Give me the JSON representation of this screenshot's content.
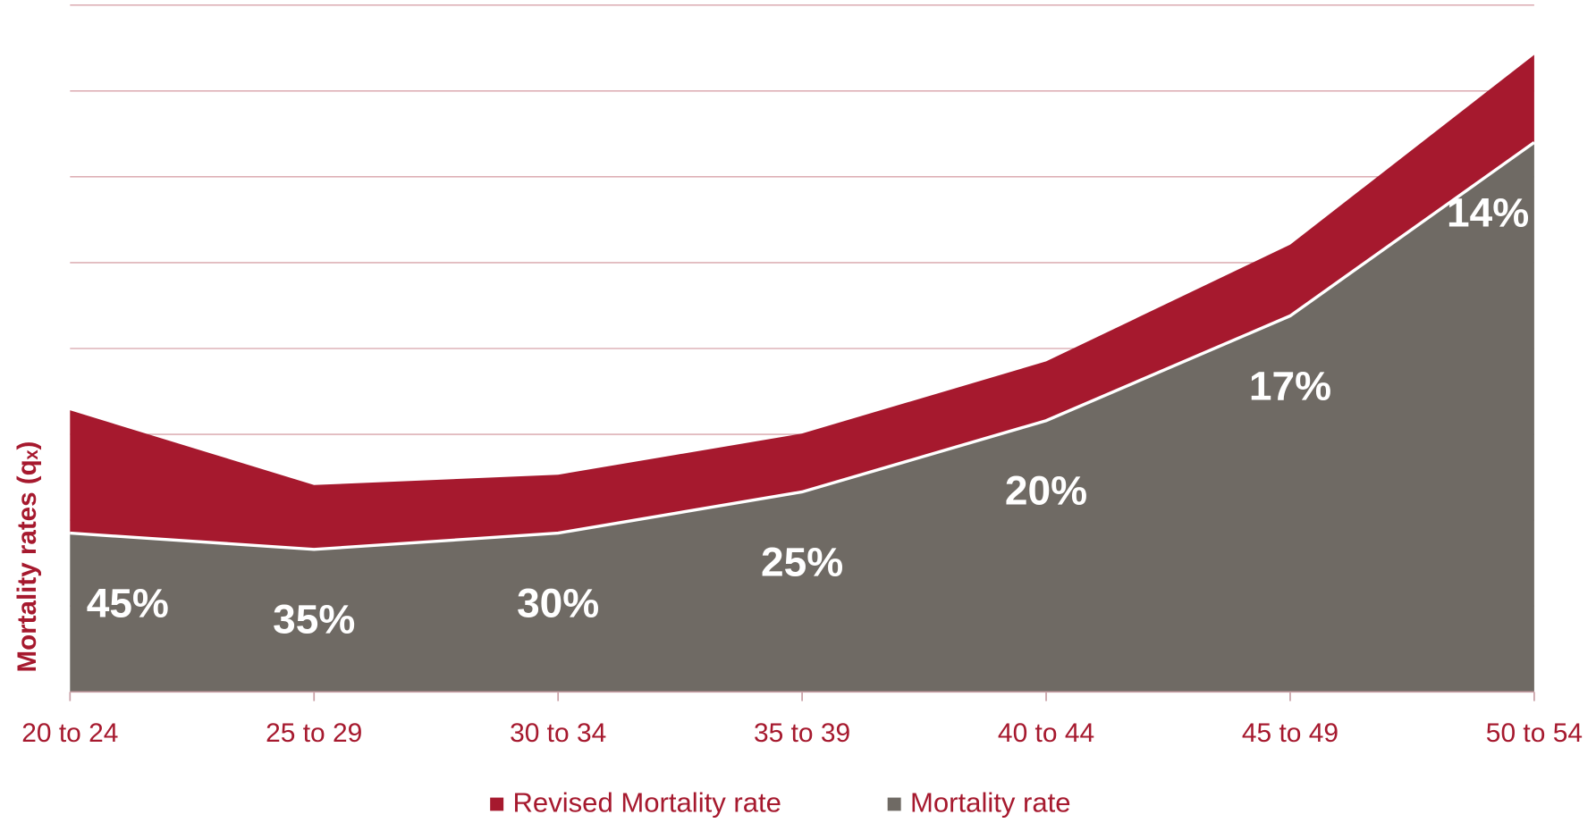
{
  "chart_data": {
    "type": "stacked_area",
    "y_label": "Mortality rates (qₓ)",
    "categories": [
      "20 to 24",
      "25 to 29",
      "30 to 34",
      "35 to 39",
      "40 to 44",
      "45 to 49",
      "50 to 54"
    ],
    "series": [
      {
        "name": "Revised Mortality rate",
        "color": "#a6192e",
        "values": [
          1.43,
          0.75,
          0.68,
          0.68,
          0.69,
          0.83,
          1.02
        ]
      },
      {
        "name": "Mortality rate",
        "color": "#6f6a64",
        "values": [
          1.85,
          1.66,
          1.85,
          2.33,
          3.16,
          4.38,
          6.4
        ]
      }
    ],
    "annotations": [
      "45%",
      "35%",
      "30%",
      "25%",
      "20%",
      "17%",
      "14%"
    ],
    "ylim": [
      0,
      8
    ],
    "yticks": [
      0,
      1,
      2,
      3,
      4,
      5,
      6,
      7,
      8
    ],
    "grid": true,
    "legend": "bottom"
  }
}
